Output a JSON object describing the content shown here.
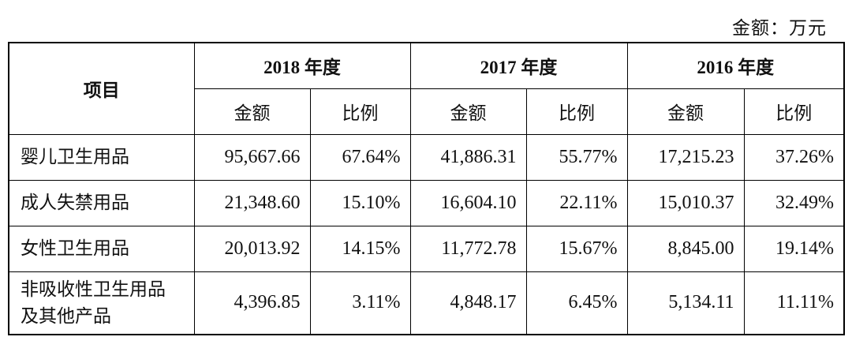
{
  "unit_note": "金额：万元",
  "header": {
    "item_label": "项目",
    "years": [
      "2018 年度",
      "2017 年度",
      "2016 年度"
    ],
    "amount_label": "金额",
    "ratio_label": "比例"
  },
  "rows": [
    {
      "label": "婴儿卫生用品",
      "values": [
        "95,667.66",
        "67.64%",
        "41,886.31",
        "55.77%",
        "17,215.23",
        "37.26%"
      ]
    },
    {
      "label": "成人失禁用品",
      "values": [
        "21,348.60",
        "15.10%",
        "16,604.10",
        "22.11%",
        "15,010.37",
        "32.49%"
      ]
    },
    {
      "label": "女性卫生用品",
      "values": [
        "20,013.92",
        "14.15%",
        "11,772.78",
        "15.67%",
        "8,845.00",
        "19.14%"
      ]
    },
    {
      "label_line1": "非吸收性卫生用品",
      "label_line2": "及其他产品",
      "values": [
        "4,396.85",
        "3.11%",
        "4,848.17",
        "6.45%",
        "5,134.11",
        "11.11%"
      ]
    }
  ]
}
